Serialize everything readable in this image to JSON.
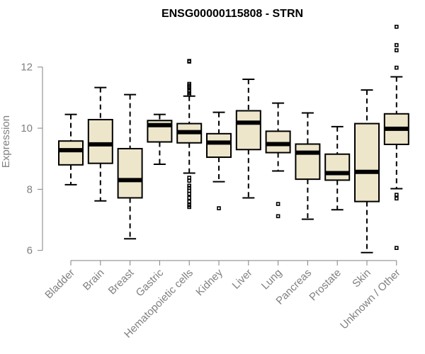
{
  "chart_data": {
    "type": "boxplot",
    "title": "ENSG00000115808 - STRN",
    "xlabel": "",
    "ylabel": "Expression",
    "ylim": [
      5.9,
      13.5
    ],
    "yticks": [
      6,
      8,
      10,
      12
    ],
    "categories": [
      "Bladder",
      "Brain",
      "Breast",
      "Gastric",
      "Hematopoietic cells",
      "Kidney",
      "Liver",
      "Lung",
      "Pancreas",
      "Prostate",
      "Skin",
      "Unknown / Other"
    ],
    "boxes": [
      {
        "category": "Bladder",
        "min": 8.15,
        "q1": 8.8,
        "median": 9.28,
        "q3": 9.58,
        "max": 10.45,
        "outliers": []
      },
      {
        "category": "Brain",
        "min": 7.62,
        "q1": 8.85,
        "median": 9.47,
        "q3": 10.28,
        "max": 11.33,
        "outliers": []
      },
      {
        "category": "Breast",
        "min": 6.38,
        "q1": 7.72,
        "median": 8.3,
        "q3": 9.33,
        "max": 11.1,
        "outliers": []
      },
      {
        "category": "Gastric",
        "min": 8.82,
        "q1": 9.55,
        "median": 10.1,
        "q3": 10.25,
        "max": 10.45,
        "outliers": []
      },
      {
        "category": "Hematopoietic cells",
        "min": 8.53,
        "q1": 9.52,
        "median": 9.87,
        "q3": 10.15,
        "max": 11.05,
        "outliers": [
          12.2,
          12.18,
          11.45,
          11.4,
          11.35,
          11.3,
          11.22,
          11.15,
          11.1,
          8.38,
          8.28,
          8.12,
          8.05,
          7.95,
          7.85,
          7.72,
          7.6,
          7.48,
          7.42
        ]
      },
      {
        "category": "Kidney",
        "min": 8.25,
        "q1": 9.05,
        "median": 9.53,
        "q3": 9.82,
        "max": 10.52,
        "outliers": [
          7.38
        ]
      },
      {
        "category": "Liver",
        "min": 7.72,
        "q1": 9.3,
        "median": 10.18,
        "q3": 10.57,
        "max": 11.6,
        "outliers": []
      },
      {
        "category": "Lung",
        "min": 8.6,
        "q1": 9.2,
        "median": 9.48,
        "q3": 9.9,
        "max": 10.82,
        "outliers": [
          7.52,
          7.12
        ]
      },
      {
        "category": "Pancreas",
        "min": 7.02,
        "q1": 8.33,
        "median": 9.2,
        "q3": 9.48,
        "max": 10.5,
        "outliers": []
      },
      {
        "category": "Prostate",
        "min": 7.33,
        "q1": 8.3,
        "median": 8.53,
        "q3": 9.15,
        "max": 10.05,
        "outliers": []
      },
      {
        "category": "Skin",
        "min": 5.93,
        "q1": 7.6,
        "median": 8.57,
        "q3": 10.15,
        "max": 11.25,
        "outliers": []
      },
      {
        "category": "Unknown / Other",
        "min": 8.02,
        "q1": 9.47,
        "median": 9.98,
        "q3": 10.47,
        "max": 11.68,
        "outliers": [
          13.32,
          12.72,
          12.55,
          11.98,
          7.82,
          7.7,
          6.08
        ]
      }
    ],
    "box_fill": "#ede6cb",
    "box_stroke": "#000000",
    "axis_color": "#808080"
  }
}
